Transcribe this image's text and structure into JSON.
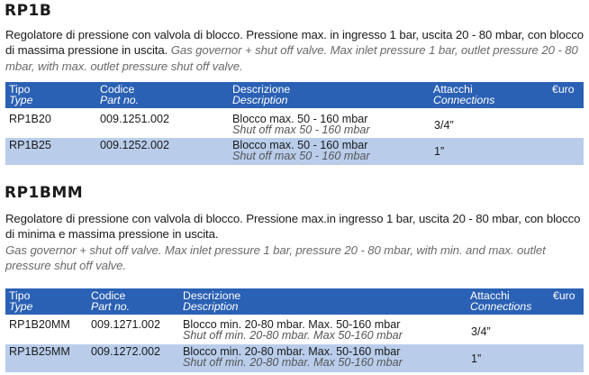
{
  "sections": [
    {
      "title": "RP1B",
      "desc_it": "Regolatore di pressione con valvola di blocco. Pressione max. in ingresso 1 bar, uscita 20 - 80 mbar, con blocco di massima pressione in uscita.",
      "desc_en": "Gas governor + shut off valve. Max inlet pressure 1 bar, outlet  pressure 20 - 80 mbar, with max. outlet pressure shut off valve.",
      "headers": {
        "type_it": "Tipo",
        "type_en": "Type",
        "code_it": "Codice",
        "code_en": "Part no.",
        "desc_it": "Descrizione",
        "desc_en": "Description",
        "conn_it": "Attacchi",
        "conn_en": "Connections",
        "price": "€uro"
      },
      "rows": [
        {
          "type": "RP1B20",
          "code": "009.1251.002",
          "desc_it": "Blocco max.  50 - 160 mbar",
          "desc_en": "Shut off  max 50 - 160 mbar",
          "conn": "3/4”"
        },
        {
          "type": "RP1B25",
          "code": "009.1252.002",
          "desc_it": "Blocco max.  50 - 160 mbar",
          "desc_en": "Shut off  max 50 - 160 mbar",
          "conn": "1”"
        }
      ]
    },
    {
      "title": "RP1BMM",
      "desc_it": "Regolatore di pressione con valvola di blocco. Pressione max.in ingresso  1 bar, uscita 20 - 80 mbar, con blocco di minima e massima pressione in uscita.",
      "desc_en": "Gas governor + shut off valve. Max inlet pressure 1 bar, pressure 20 - 80 mbar, with min. and max. outlet pressure shut off valve.",
      "headers": {
        "type_it": "Tipo",
        "type_en": "Type",
        "code_it": "Codice",
        "code_en": "Part no.",
        "desc_it": "Descrizione",
        "desc_en": "Description",
        "conn_it": "Attacchi",
        "conn_en": "Connections",
        "price": "€uro"
      },
      "rows": [
        {
          "type": "RP1B20MM",
          "code": "009.1271.002",
          "desc_it": "Blocco min. 20-80 mbar. Max. 50-160  mbar",
          "desc_en": "Shut off min. 20-80 mbar. Max 50-160 mbar",
          "conn": "3/4”"
        },
        {
          "type": "RP1B25MM",
          "code": "009.1272.002",
          "desc_it": "Blocco min. 20-80 mbar. Max. 50-160  mbar",
          "desc_en": "Shut off min. 20-80 mbar. Max 50-160 mbar",
          "conn": "1”"
        }
      ]
    }
  ]
}
